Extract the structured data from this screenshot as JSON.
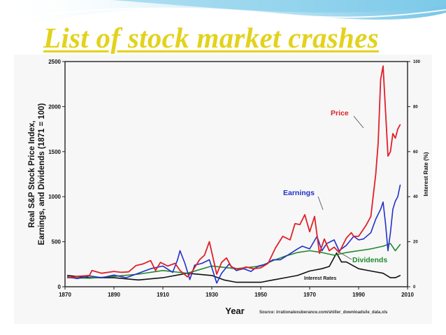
{
  "slide": {
    "title": "List of stock market crashes"
  },
  "chart_data": {
    "type": "line",
    "xlabel": "Year",
    "ylabel": "Real S&P Stock Price Index, Earnings, and Dividends (1871 = 100)",
    "ylabel_lines": [
      "Real S&P Stock Price Index,",
      "Earnings, and Dividends (1871 = 100)"
    ],
    "y2label": "Interest Rate (%)",
    "xlim": [
      1870,
      2010
    ],
    "ylim": [
      0,
      2500
    ],
    "y2lim": [
      0,
      100
    ],
    "grid": false,
    "x_ticks": [
      "1870",
      "1890",
      "1910",
      "1930",
      "1950",
      "1970",
      "1990",
      "2010"
    ],
    "y_ticks": [
      "0",
      "500",
      "1000",
      "1500",
      "2000",
      "2500"
    ],
    "y2_ticks": [
      "0",
      "20",
      "40",
      "60",
      "80",
      "100"
    ],
    "source": "Source: irrationalexuberance.com/shiller_downloads/ie_data.xls",
    "series": [
      {
        "name": "Price",
        "axis": "left",
        "color": "#e0202a",
        "x": [
          1871,
          1875,
          1880,
          1881,
          1885,
          1890,
          1893,
          1896,
          1899,
          1902,
          1905,
          1907,
          1909,
          1912,
          1915,
          1917,
          1920,
          1922,
          1925,
          1927,
          1929,
          1932,
          1934,
          1936,
          1938,
          1941,
          1944,
          1947,
          1950,
          1953,
          1956,
          1959,
          1962,
          1964,
          1966,
          1968,
          1970,
          1972,
          1974,
          1976,
          1978,
          1980,
          1982,
          1985,
          1987,
          1988,
          1990,
          1993,
          1995,
          1997,
          1998,
          1999,
          2000,
          2001,
          2002,
          2003,
          2004,
          2005,
          2006,
          2007
        ],
        "values": [
          100,
          115,
          125,
          180,
          150,
          170,
          160,
          165,
          235,
          255,
          290,
          180,
          270,
          230,
          260,
          180,
          110,
          170,
          300,
          350,
          500,
          140,
          270,
          320,
          220,
          190,
          220,
          200,
          210,
          260,
          430,
          560,
          520,
          700,
          690,
          800,
          610,
          780,
          370,
          530,
          400,
          440,
          380,
          540,
          600,
          560,
          560,
          680,
          780,
          1250,
          1600,
          2300,
          2450,
          1950,
          1450,
          1500,
          1700,
          1650,
          1750,
          1800
        ]
      },
      {
        "name": "Earnings",
        "axis": "left",
        "color": "#2230c8",
        "x": [
          1871,
          1875,
          1880,
          1885,
          1890,
          1895,
          1900,
          1905,
          1910,
          1914,
          1916,
          1917,
          1919,
          1921,
          1923,
          1926,
          1929,
          1932,
          1934,
          1937,
          1940,
          1943,
          1946,
          1949,
          1952,
          1955,
          1958,
          1961,
          1965,
          1967,
          1970,
          1973,
          1975,
          1977,
          1980,
          1982,
          1985,
          1988,
          1990,
          1992,
          1995,
          1997,
          1999,
          2000,
          2001,
          2002,
          2003,
          2004,
          2005,
          2006,
          2007
        ],
        "values": [
          110,
          90,
          120,
          100,
          130,
          100,
          150,
          200,
          230,
          160,
          300,
          400,
          260,
          80,
          240,
          260,
          300,
          40,
          150,
          250,
          180,
          200,
          170,
          230,
          250,
          300,
          300,
          350,
          420,
          450,
          420,
          560,
          400,
          480,
          520,
          400,
          460,
          560,
          520,
          530,
          600,
          750,
          860,
          940,
          700,
          400,
          600,
          860,
          950,
          1000,
          1130
        ]
      },
      {
        "name": "Dividends",
        "axis": "left",
        "color": "#21882e",
        "x": [
          1871,
          1880,
          1890,
          1900,
          1910,
          1920,
          1930,
          1940,
          1950,
          1955,
          1960,
          1965,
          1970,
          1975,
          1980,
          1985,
          1990,
          1995,
          2000,
          2003,
          2005,
          2007
        ],
        "values": [
          100,
          95,
          115,
          140,
          180,
          150,
          230,
          200,
          230,
          290,
          340,
          380,
          400,
          380,
          350,
          380,
          400,
          420,
          450,
          480,
          400,
          470
        ]
      },
      {
        "name": "Interest Rates",
        "axis": "right",
        "color": "#111111",
        "x": [
          1871,
          1880,
          1890,
          1900,
          1910,
          1920,
          1930,
          1935,
          1940,
          1945,
          1950,
          1955,
          1960,
          1965,
          1970,
          1975,
          1978,
          1981,
          1983,
          1985,
          1990,
          1995,
          2000,
          2003,
          2005,
          2007
        ],
        "values": [
          5,
          4,
          4,
          3,
          4,
          6,
          5,
          3,
          2,
          2,
          2,
          3,
          4,
          5,
          7,
          8,
          9,
          15,
          11,
          11,
          8,
          7,
          6,
          4,
          4,
          5
        ]
      }
    ],
    "annotations": [
      {
        "text": "Price",
        "points_to": "Price"
      },
      {
        "text": "Earnings",
        "points_to": "Earnings"
      },
      {
        "text": "Dividends",
        "points_to": "Dividends"
      },
      {
        "text": "Interest Rates",
        "points_to": "Interest Rates"
      }
    ]
  }
}
